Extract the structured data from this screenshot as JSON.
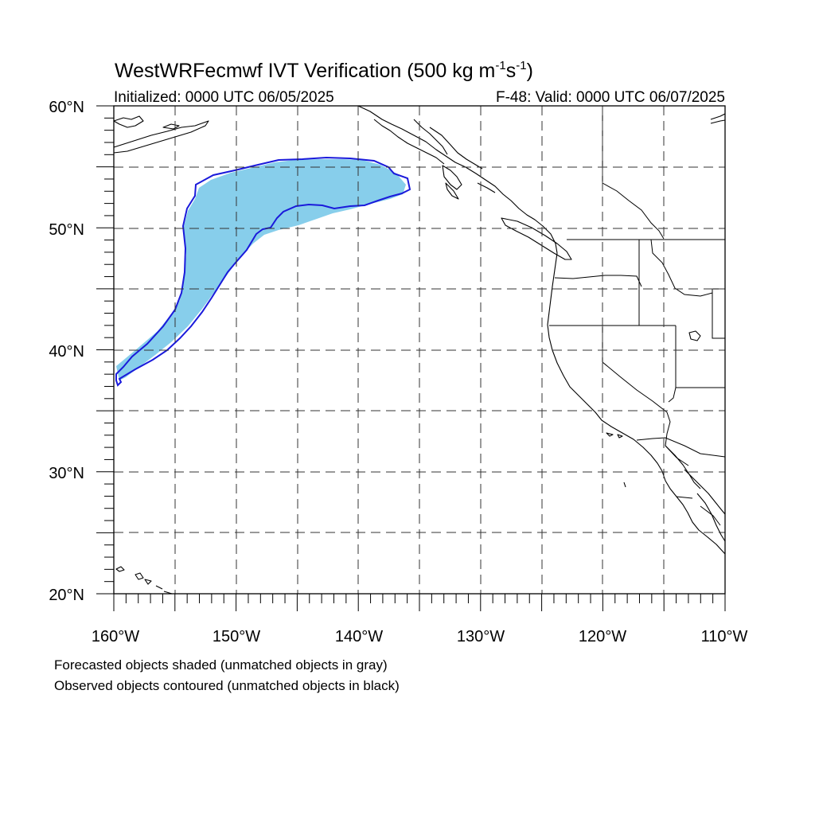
{
  "header": {
    "title_main": "WestWRFecmwf IVT Verification (500 kg m",
    "title_sup1": "-1",
    "title_mid": "s",
    "title_sup2": "-1",
    "title_end": ")",
    "initialized": "Initialized: 0000 UTC 06/05/2025",
    "valid": "F-48: Valid: 0000 UTC 06/07/2025"
  },
  "axes": {
    "lon_labels": [
      "160°W",
      "150°W",
      "140°W",
      "130°W",
      "120°W",
      "110°W"
    ],
    "lat_labels": [
      "60°N",
      "50°N",
      "40°N",
      "30°N",
      "20°N"
    ],
    "lon_range": [
      -160,
      -110
    ],
    "lat_range": [
      20,
      60
    ],
    "grid": "dashed every 5 degrees"
  },
  "legend": {
    "forecast_note": "Forecasted objects shaded (unmatched objects in gray)",
    "observed_note": "Observed objects contoured (unmatched objects in black)"
  },
  "colors": {
    "forecast_fill": "#87ceeb",
    "observed_contour": "#1a1adb",
    "coastline": "#000000"
  },
  "objects": [
    {
      "kind": "forecast",
      "status": "matched"
    },
    {
      "kind": "observed",
      "status": "matched"
    }
  ]
}
